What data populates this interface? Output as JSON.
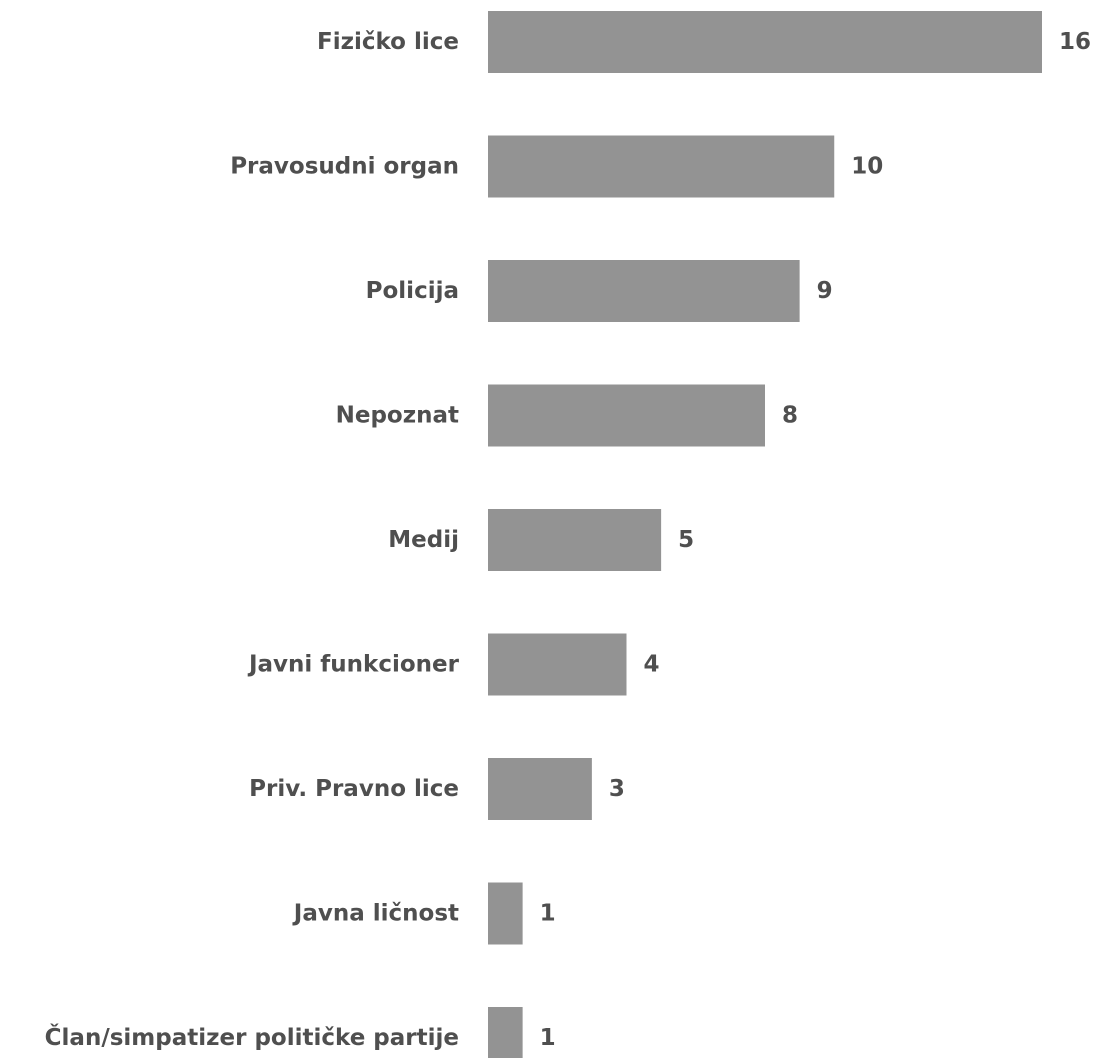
{
  "chart_data": {
    "type": "bar",
    "orientation": "horizontal",
    "categories": [
      "Fizičko lice",
      "Pravosudni organ",
      "Policija",
      "Nepoznat",
      "Medij",
      "Javni funkcioner",
      "Priv. Pravno lice",
      "Javna ličnost",
      "Član/simpatizer političke partije"
    ],
    "values": [
      16,
      10,
      9,
      8,
      5,
      4,
      3,
      1,
      1
    ],
    "xlim": [
      0,
      16
    ],
    "grid": false,
    "legend": "none",
    "colors": {
      "bar": "#939393",
      "label_text": "#4f4f4f",
      "background": "#ffffff"
    }
  }
}
